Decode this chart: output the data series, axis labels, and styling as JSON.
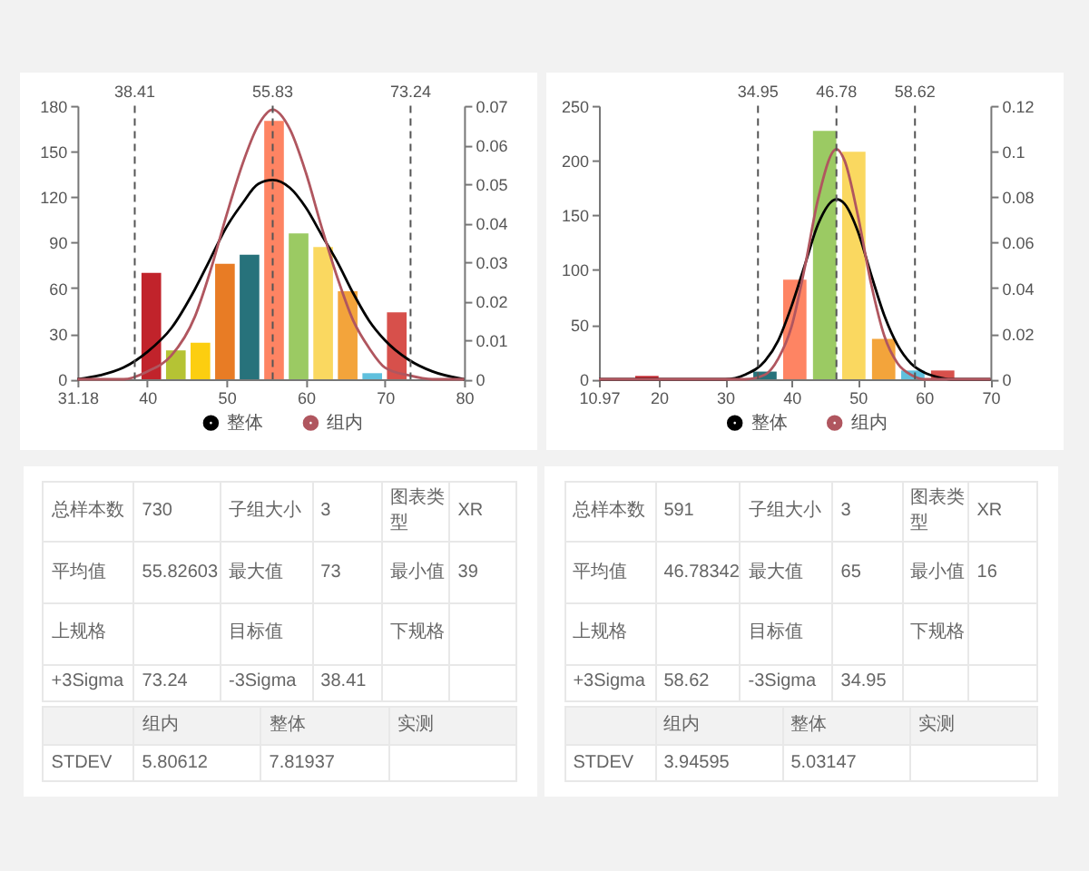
{
  "chart_data": [
    {
      "type": "bar",
      "xlim": [
        31.18,
        80
      ],
      "xticks": [
        31.18,
        40,
        50,
        60,
        70,
        80
      ],
      "ylim": [
        0,
        180
      ],
      "yticks": [
        0,
        30,
        60,
        90,
        120,
        150,
        180
      ],
      "y2lim": [
        0,
        0.07
      ],
      "y2ticks": [
        0,
        0.01,
        0.02,
        0.03,
        0.04,
        0.05,
        0.06,
        0.07
      ],
      "legend": "bottom",
      "series": [
        {
          "type": "bar",
          "x": [
            40.5,
            43.6,
            46.7,
            49.8,
            52.9,
            56.0,
            59.1,
            62.2,
            65.3,
            68.4,
            71.5
          ],
          "values": [
            70,
            19,
            24,
            76,
            82,
            170,
            96,
            87,
            58,
            4,
            44
          ],
          "colors": [
            "#c1232b",
            "#b5c334",
            "#fcce10",
            "#e87c25",
            "#27727b",
            "#fe8463",
            "#9bca63",
            "#fad860",
            "#f3a43b",
            "#60c0dd",
            "#d7504b"
          ]
        },
        {
          "type": "line",
          "name": "整体",
          "color": "#000000",
          "axis": "y2",
          "x": [
            31.18,
            34,
            37,
            40,
            43,
            46,
            48,
            50,
            52,
            54,
            55.83,
            58,
            60,
            62,
            64,
            66,
            68,
            70,
            73,
            76,
            80
          ],
          "values": [
            0,
            0.001,
            0.003,
            0.007,
            0.013,
            0.023,
            0.031,
            0.039,
            0.045,
            0.05,
            0.051,
            0.049,
            0.044,
            0.037,
            0.03,
            0.022,
            0.015,
            0.01,
            0.005,
            0.002,
            0
          ]
        },
        {
          "type": "line",
          "name": "组内",
          "color": "#b0565f",
          "axis": "y2",
          "x": [
            31.18,
            34,
            37,
            40,
            43,
            46,
            48,
            50,
            52,
            54,
            55.83,
            58,
            60,
            62,
            64,
            66,
            68,
            70,
            73,
            76,
            80
          ],
          "values": [
            0,
            0,
            0,
            0.002,
            0.006,
            0.016,
            0.028,
            0.042,
            0.055,
            0.065,
            0.069,
            0.064,
            0.053,
            0.039,
            0.026,
            0.015,
            0.008,
            0.003,
            0.001,
            0,
            0
          ]
        }
      ],
      "ref_lines": [
        {
          "axis": "x",
          "value": 38.41,
          "label": "38.41",
          "line_style": "dashed"
        },
        {
          "axis": "x",
          "value": 55.83,
          "label": "55.83",
          "line_style": "dashed"
        },
        {
          "axis": "x",
          "value": 73.24,
          "label": "73.24",
          "line_style": "dashed"
        }
      ]
    },
    {
      "type": "bar",
      "xlim": [
        10.97,
        70
      ],
      "xticks": [
        10.97,
        20,
        30,
        40,
        50,
        60,
        70
      ],
      "ylim": [
        0,
        250
      ],
      "yticks": [
        0,
        50,
        100,
        150,
        200,
        250
      ],
      "y2lim": [
        0,
        0.12
      ],
      "y2ticks": [
        0,
        0.02,
        0.04,
        0.06,
        0.08,
        0.1,
        0.12
      ],
      "legend": "bottom",
      "series": [
        {
          "type": "bar",
          "x": [
            18.2,
            36.0,
            40.5,
            45.0,
            49.4,
            53.9,
            58.3,
            62.8
          ],
          "values": [
            3,
            7,
            91,
            227,
            208,
            37,
            8,
            8
          ],
          "colors": [
            "#c1232b",
            "#27727b",
            "#fe8463",
            "#9bca63",
            "#fad860",
            "#f3a43b",
            "#60c0dd",
            "#d7504b"
          ]
        },
        {
          "type": "line",
          "name": "整体",
          "color": "#000000",
          "axis": "y2",
          "x": [
            10.97,
            20,
            26,
            30,
            33,
            36,
            38,
            40,
            42,
            44,
            46.78,
            48,
            50,
            52,
            54,
            56,
            58,
            60,
            62,
            64,
            67,
            70
          ],
          "values": [
            0,
            0,
            0,
            0,
            0.002,
            0.008,
            0.017,
            0.032,
            0.05,
            0.068,
            0.079,
            0.077,
            0.065,
            0.046,
            0.028,
            0.015,
            0.007,
            0.003,
            0.001,
            0,
            0,
            0
          ]
        },
        {
          "type": "line",
          "name": "组内",
          "color": "#b0565f",
          "axis": "y2",
          "x": [
            10.97,
            20,
            26,
            30,
            33,
            36,
            38,
            40,
            42,
            44,
            46.78,
            48,
            50,
            52,
            54,
            56,
            58,
            60,
            62,
            64,
            67,
            70
          ],
          "values": [
            0,
            0,
            0,
            0,
            0,
            0.002,
            0.009,
            0.023,
            0.049,
            0.079,
            0.101,
            0.096,
            0.072,
            0.042,
            0.019,
            0.007,
            0.002,
            0,
            0,
            0,
            0,
            0
          ]
        }
      ],
      "ref_lines": [
        {
          "axis": "x",
          "value": 34.95,
          "label": "34.95",
          "line_style": "dashed"
        },
        {
          "axis": "x",
          "value": 46.78,
          "label": "46.78",
          "line_style": "dashed"
        },
        {
          "axis": "x",
          "value": 58.62,
          "label": "58.62",
          "line_style": "dashed"
        }
      ]
    },
    {
      "type": "other",
      "annotations": [
        "总样本数",
        "730",
        "子组大小",
        "3",
        "图表类型",
        "XR",
        "平均值",
        "55.82603",
        "最大值",
        "73",
        "最小值",
        "39",
        "上规格",
        "目标值",
        "下规格",
        "+3Sigma",
        "73.24",
        "-3Sigma",
        "38.41",
        "组内",
        "整体",
        "实测",
        "STDEV",
        "5.80612",
        "7.81937"
      ]
    },
    {
      "type": "other",
      "annotations": [
        "总样本数",
        "591",
        "子组大小",
        "3",
        "图表类型",
        "XR",
        "平均值",
        "46.78342",
        "最大值",
        "65",
        "最小值",
        "16",
        "上规格",
        "目标值",
        "下规格",
        "+3Sigma",
        "58.62",
        "-3Sigma",
        "34.95",
        "组内",
        "整体",
        "实测",
        "STDEV",
        "3.94595",
        "5.03147"
      ]
    }
  ]
}
